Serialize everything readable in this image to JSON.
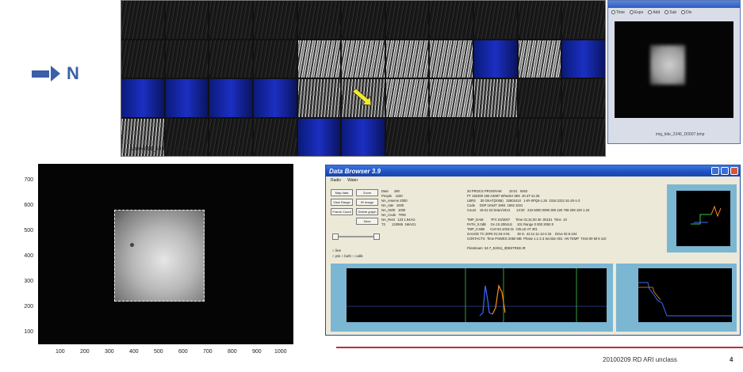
{
  "direction": {
    "label": "N"
  },
  "figure": {
    "title": "slide4/3d_69388_IR.bmp",
    "y_ticks": [
      "700",
      "600",
      "500",
      "400",
      "300",
      "200",
      "100"
    ],
    "x_ticks": [
      "100",
      "200",
      "300",
      "400",
      "500",
      "600",
      "700",
      "800",
      "900",
      "1000"
    ]
  },
  "popup": {
    "radios": [
      "Time",
      "Expo",
      "Add",
      "Sub",
      "Div"
    ],
    "caption": "img_tide_2346_D0007.bmp"
  },
  "browser": {
    "title": "Data Browser 3.9",
    "menu": [
      "Radio",
      "Water"
    ],
    "buttons": [
      "Map data",
      "Zoom",
      "View Range",
      "IR Image",
      "Frame Count",
      "Delete graph",
      "",
      "Save"
    ],
    "radio_options": [
      "line",
      "pts",
      "both",
      "calib"
    ],
    "info_col1": "Date      190\nPeople    1100\nNA_reserve 2000\nNA_rate   1000\nNA_SIZE   1000\nNA_Code   TRM\nNA_Rest   123 1.94AG\nT3       123069  1MAG1",
    "info_col2": "30 PROCS PROGRAM        10:01   0453\nFT 192400 190 A2697 Wheeler 3E5  20.4T-12.25\nLBRS     30 OKAT(2006)   32902410   1-IR-0PQ5-1.25  1016 2221 51-20-1-3\nCode     DSP 1K64T 1993  1992 1021\nCount    19.01-23 Drain/1913       13:20   234 5000 0090 300 220 708 208 100 1-23\n\nTMP_DAM        TFC 04/2007      Time 01:31:00 30 .00101  Time  10\nPATH_0.0dB     GA 10.2004U1     101 Range 0 000 2050 0\nTMP_0.0dB      Cort 94.1018.01  CELLE AT 301\nGAUGE TC 20F6 01:34-4-91        30 m  42.11-11-12-2.15    Drive 02.6-104\nCONTACTS  Time PSWEG 2050 MB  Phase 1.1-2.3 Section 001  AN TEMP  Trnst 00 Ml 8 110\n\nFilestream: 34-7_E4011_3D8STRKE.IR"
  },
  "footer": {
    "text": "20100209 RD ARI unclass",
    "page": "4"
  },
  "colors": {
    "arrow": "#3b5fa8",
    "footer_line": "#b8303c",
    "plot_panel": "#7bb6d2"
  }
}
